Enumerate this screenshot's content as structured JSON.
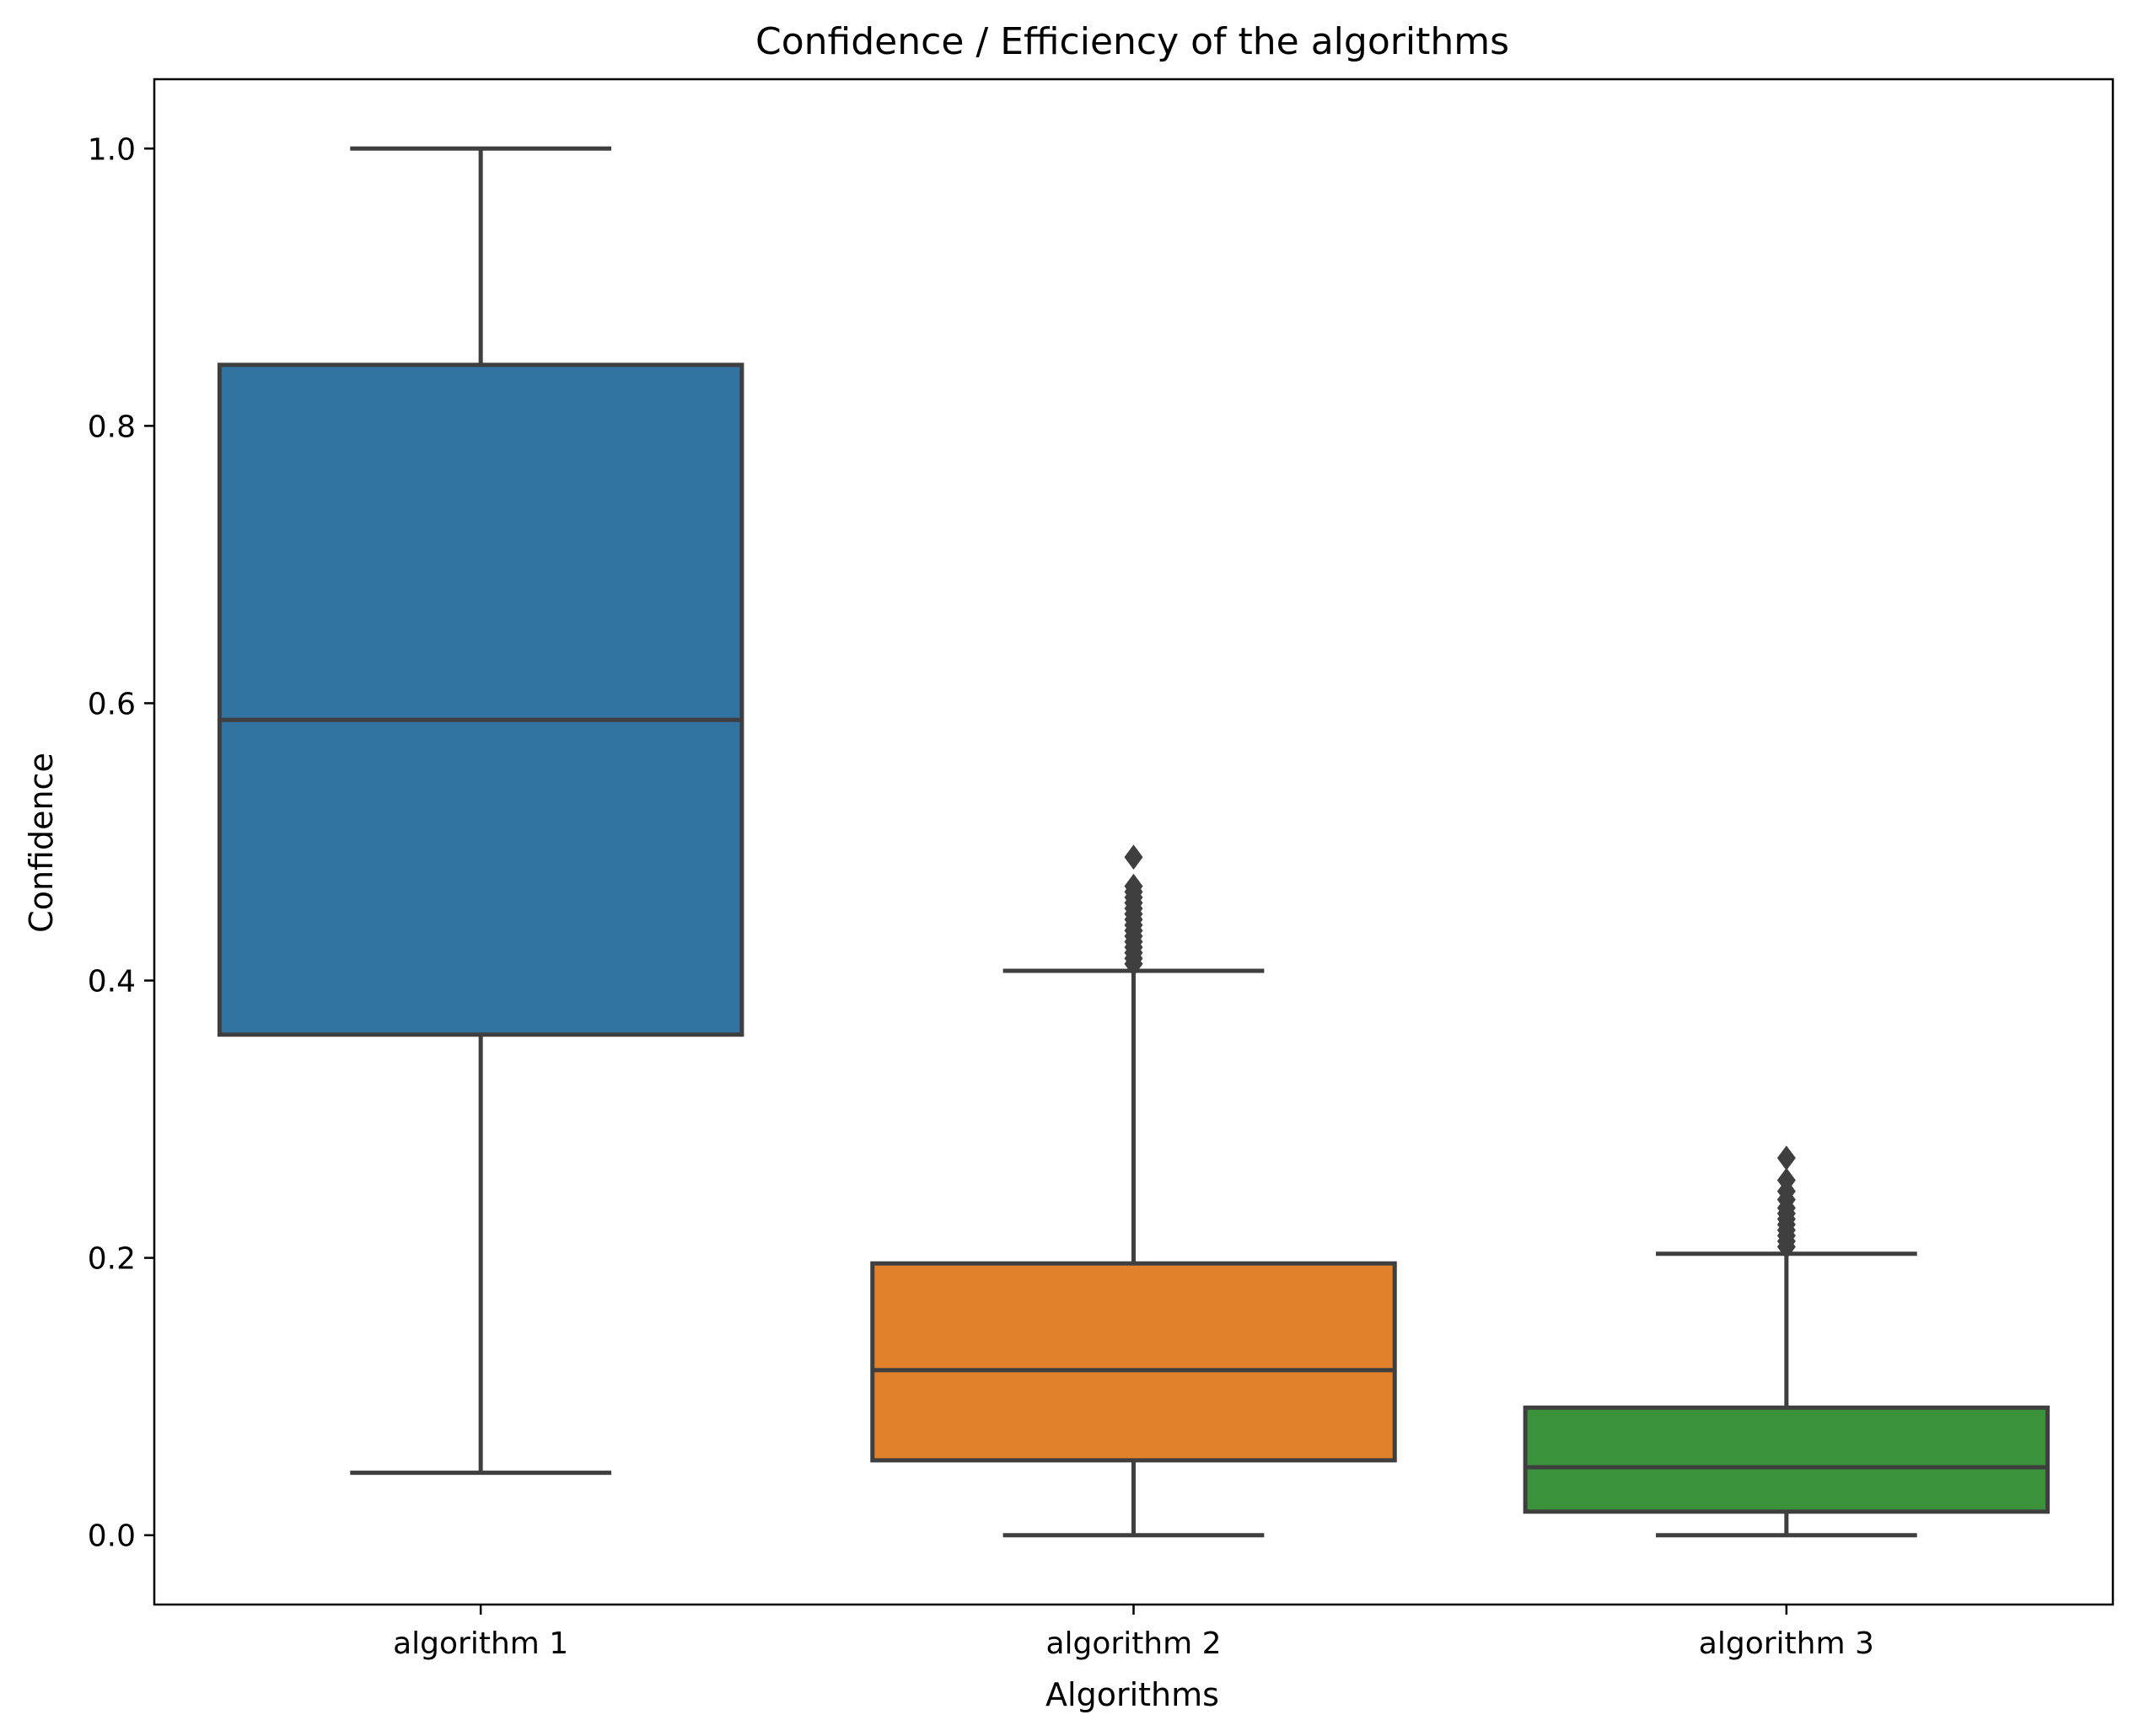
{
  "chart_data": {
    "type": "box",
    "title": "Confidence / Efficiency of the algorithms",
    "xlabel": "Algorithms",
    "ylabel": "Confidence",
    "ylim": [
      -0.05,
      1.05
    ],
    "yticks": [
      0.0,
      0.2,
      0.4,
      0.6,
      0.8,
      1.0
    ],
    "ytick_labels": [
      "0.0",
      "0.2",
      "0.4",
      "0.6",
      "0.8",
      "1.0"
    ],
    "categories": [
      "algorithm 1",
      "algorithm 2",
      "algorithm 3"
    ],
    "grid": false,
    "legend": "none",
    "boxes": [
      {
        "category": "algorithm 1",
        "whisker_low": 0.045,
        "q1": 0.361,
        "median": 0.588,
        "q3": 0.844,
        "whisker_high": 1.0,
        "outliers": [],
        "color": "#3274a1"
      },
      {
        "category": "algorithm 2",
        "whisker_low": 0.0,
        "q1": 0.054,
        "median": 0.119,
        "q3": 0.196,
        "whisker_high": 0.407,
        "outliers": [
          0.412,
          0.416,
          0.42,
          0.424,
          0.428,
          0.432,
          0.436,
          0.44,
          0.444,
          0.448,
          0.452,
          0.456,
          0.46,
          0.464,
          0.468,
          0.489
        ],
        "color": "#e1812c"
      },
      {
        "category": "algorithm 3",
        "whisker_low": 0.0,
        "q1": 0.017,
        "median": 0.049,
        "q3": 0.092,
        "whisker_high": 0.203,
        "outliers": [
          0.208,
          0.212,
          0.216,
          0.22,
          0.224,
          0.228,
          0.232,
          0.236,
          0.242,
          0.248,
          0.256,
          0.272
        ],
        "color": "#3a923a"
      }
    ]
  }
}
